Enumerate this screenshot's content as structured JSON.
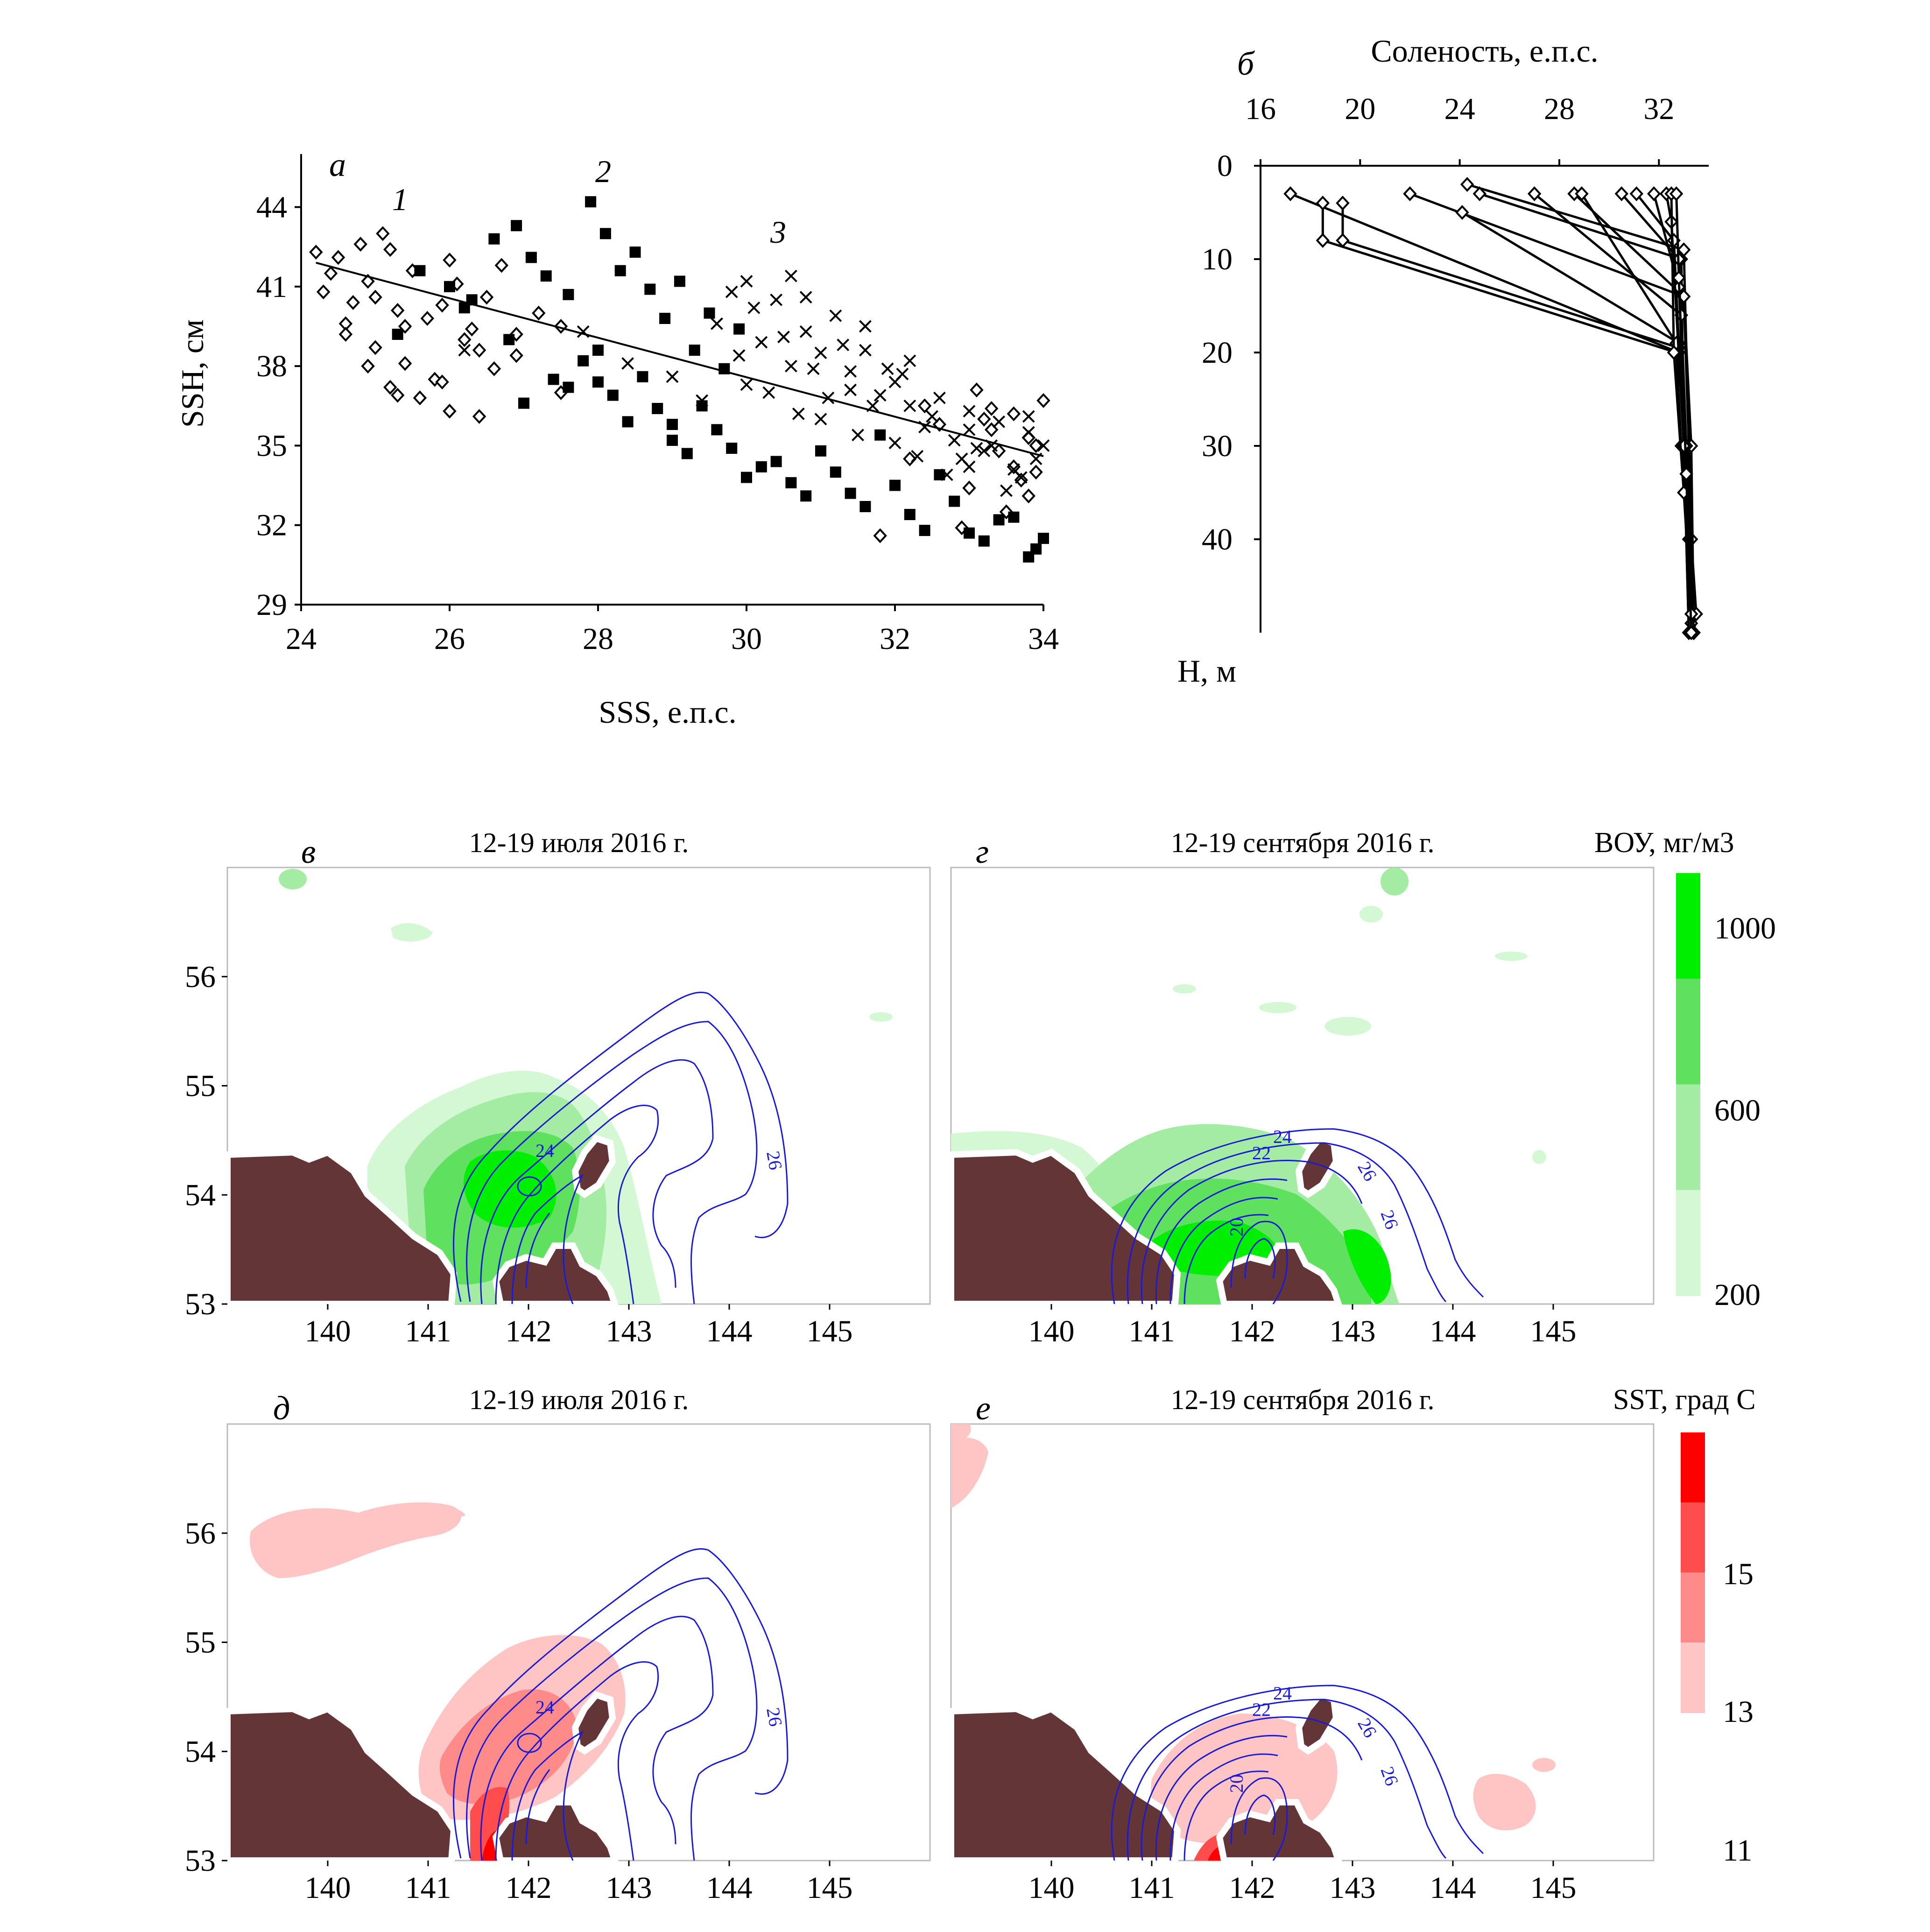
{
  "panel_letters": {
    "a": "а",
    "b": "б",
    "v": "в",
    "g": "г",
    "d": "д",
    "e": "е"
  },
  "series_numbers": [
    "1",
    "2",
    "3"
  ],
  "panel_titles": {
    "v": "12-19 июля 2016 г.",
    "g": "12-19 сентября 2016 г.",
    "d": "12-19 июля 2016 г.",
    "e": "12-19 сентября 2016 г."
  },
  "colorbars": {
    "chl": {
      "title": "ВОУ, мг/м3",
      "ticks": [
        "1000",
        "600",
        "200"
      ],
      "colors": [
        "#00ee00",
        "#5fe05f",
        "#a4eca4",
        "#d4f7d4"
      ]
    },
    "sst": {
      "title": "SST, град С",
      "ticks": [
        "15",
        "13",
        "11"
      ],
      "colors": [
        "#ff0000",
        "#ff4d4d",
        "#ff8a8a",
        "#ffc4c4"
      ]
    }
  },
  "contour_labels": {
    "v": [
      "24",
      "26"
    ],
    "g": [
      "24",
      "22",
      "26",
      "20",
      "26"
    ],
    "d": [
      "24",
      "26"
    ],
    "e": [
      "24",
      "22",
      "26",
      "20",
      "26"
    ]
  },
  "colors": {
    "land": "#633536",
    "contour": "#1a1ad6",
    "marker": "#000000"
  },
  "chart_data": [
    {
      "id": "a",
      "type": "scatter",
      "xlabel": "SSS, е.п.с.",
      "ylabel": "SSH, см",
      "xlim": [
        24,
        34
      ],
      "ylim": [
        29,
        46
      ],
      "x_ticks": [
        "24",
        "26",
        "28",
        "30",
        "32",
        "34"
      ],
      "y_ticks": [
        "29",
        "32",
        "35",
        "38",
        "41",
        "44"
      ],
      "series": [
        {
          "name": "1",
          "marker": "open-diamond",
          "x": [
            24.2,
            24.3,
            24.4,
            24.5,
            24.6,
            24.7,
            24.8,
            24.9,
            25.0,
            25.1,
            25.2,
            25.3,
            25.4,
            25.5,
            25.7,
            25.9,
            26.0,
            26.1,
            26.3,
            26.5,
            26.7,
            26.9,
            27.2,
            27.5,
            25.0,
            25.2,
            25.4,
            25.6,
            25.8,
            26.0,
            26.2,
            26.4,
            26.6,
            24.6,
            24.9,
            25.3,
            25.9,
            26.4,
            26.9,
            27.5,
            31.8,
            32.2,
            32.6,
            33.0,
            33.3,
            33.6,
            33.8,
            34.0,
            33.5,
            33.7,
            33.9,
            32.9,
            33.2,
            33.4,
            33.8,
            33.1,
            33.6,
            33.9,
            32.4,
            33.3
          ],
          "y": [
            42.3,
            40.8,
            41.5,
            42.1,
            39.6,
            40.4,
            42.6,
            41.2,
            40.6,
            43.0,
            42.4,
            40.1,
            39.5,
            41.6,
            39.8,
            40.3,
            42.0,
            41.1,
            39.4,
            40.6,
            41.8,
            39.2,
            40.0,
            39.5,
            38.7,
            37.2,
            38.1,
            36.8,
            37.5,
            36.3,
            39.0,
            38.6,
            37.9,
            39.2,
            38.0,
            36.9,
            37.4,
            36.1,
            38.4,
            37.0,
            31.6,
            34.5,
            35.8,
            33.4,
            36.4,
            34.2,
            35.3,
            36.7,
            32.5,
            33.7,
            35.0,
            31.9,
            36.0,
            34.8,
            33.1,
            37.1,
            36.2,
            34.0,
            36.5,
            35.6
          ]
        },
        {
          "name": "2",
          "marker": "filled-square",
          "x": [
            25.3,
            25.6,
            26.0,
            26.3,
            26.6,
            26.9,
            27.1,
            27.3,
            27.6,
            27.9,
            28.1,
            28.3,
            28.5,
            28.7,
            28.9,
            29.1,
            29.3,
            29.5,
            29.7,
            29.9,
            26.2,
            26.8,
            27.4,
            27.8,
            28.2,
            28.6,
            29.0,
            29.4,
            29.8,
            30.2,
            30.6,
            31.0,
            31.4,
            31.8,
            32.2,
            32.6,
            33.0,
            33.4,
            33.8,
            34.0,
            27.0,
            27.6,
            28.0,
            28.4,
            28.8,
            29.2,
            29.6,
            30.0,
            30.4,
            30.8,
            31.2,
            31.6,
            32.0,
            32.4,
            32.8,
            33.2,
            33.6,
            33.9,
            28.0,
            29.0
          ],
          "y": [
            39.2,
            41.6,
            41.0,
            40.5,
            42.8,
            43.3,
            42.1,
            41.4,
            40.7,
            44.2,
            43.0,
            41.6,
            42.3,
            40.9,
            39.8,
            41.2,
            38.6,
            40.0,
            37.9,
            39.4,
            40.2,
            39.0,
            37.5,
            38.2,
            36.9,
            37.6,
            35.8,
            36.5,
            34.9,
            34.2,
            33.6,
            34.8,
            33.2,
            35.4,
            32.4,
            33.9,
            31.7,
            32.2,
            30.8,
            31.5,
            36.6,
            37.2,
            38.6,
            35.9,
            36.4,
            34.7,
            35.6,
            33.8,
            34.4,
            33.1,
            34.0,
            32.7,
            33.5,
            31.8,
            32.9,
            31.4,
            32.3,
            31.1,
            37.4,
            35.2
          ]
        },
        {
          "name": "3",
          "marker": "cross",
          "x": [
            29.6,
            29.8,
            30.0,
            30.2,
            30.4,
            30.6,
            30.8,
            31.0,
            31.2,
            31.4,
            31.6,
            31.8,
            32.0,
            32.2,
            32.4,
            32.6,
            32.8,
            33.0,
            33.2,
            33.4,
            33.6,
            33.8,
            30.1,
            30.5,
            30.9,
            31.3,
            31.7,
            32.1,
            32.5,
            32.9,
            33.3,
            33.7,
            30.3,
            30.7,
            31.1,
            31.5,
            31.9,
            32.3,
            32.7,
            33.1,
            33.5,
            33.9,
            29.9,
            30.6,
            31.4,
            32.2,
            33.0,
            33.8,
            26.2,
            27.8,
            28.4,
            29.0,
            29.4,
            30.0,
            31.0,
            32.0,
            33.0,
            34.0,
            30.8,
            31.6
          ],
          "y": [
            39.6,
            40.8,
            41.2,
            38.9,
            40.5,
            41.4,
            39.3,
            38.5,
            39.9,
            37.8,
            38.6,
            36.9,
            37.4,
            38.2,
            35.7,
            36.8,
            35.2,
            36.3,
            34.8,
            35.9,
            34.1,
            35.5,
            40.2,
            39.1,
            37.9,
            38.8,
            36.5,
            37.7,
            36.1,
            34.5,
            35.0,
            33.8,
            37.0,
            36.2,
            36.8,
            35.4,
            37.9,
            34.6,
            33.9,
            34.9,
            33.3,
            34.5,
            38.4,
            38.0,
            37.1,
            36.5,
            35.6,
            36.1,
            38.6,
            39.3,
            38.1,
            37.6,
            36.7,
            37.3,
            36.0,
            35.1,
            34.2,
            35.0,
            40.6,
            39.5
          ]
        }
      ],
      "trendline": {
        "x": [
          24.2,
          34.0
        ],
        "y": [
          41.9,
          34.6
        ]
      }
    },
    {
      "id": "b",
      "type": "line",
      "title": "Соленость, е.п.с.",
      "ylabel": "Н, м",
      "x_axis_position": "top",
      "y_inverted": true,
      "xlim": [
        16,
        34
      ],
      "ylim": [
        0,
        50
      ],
      "x_ticks": [
        "16",
        "20",
        "24",
        "28",
        "32"
      ],
      "y_ticks": [
        "0",
        "10",
        "20",
        "30",
        "40"
      ],
      "profiles": [
        {
          "s": [
            17.2,
            32.8,
            33.1,
            33.3,
            33.5,
            33.4
          ],
          "h": [
            3,
            20,
            30,
            40,
            48,
            50
          ]
        },
        {
          "s": [
            18.5,
            18.5,
            32.7,
            32.9,
            33.2,
            33.4
          ],
          "h": [
            4,
            8,
            20,
            30,
            40,
            50
          ]
        },
        {
          "s": [
            19.3,
            19.3,
            32.8,
            33.0,
            33.3,
            33.4
          ],
          "h": [
            4,
            8,
            19.5,
            30,
            40,
            50
          ]
        },
        {
          "s": [
            22.0,
            33.0,
            33.2,
            33.4
          ],
          "h": [
            3,
            14,
            30,
            50
          ]
        },
        {
          "s": [
            24.1,
            32.8,
            33.1,
            33.3
          ],
          "h": [
            5,
            19,
            30,
            48
          ]
        },
        {
          "s": [
            24.3,
            33.0,
            33.2,
            33.4
          ],
          "h": [
            2,
            9,
            30,
            50
          ]
        },
        {
          "s": [
            24.8,
            32.9,
            33.0,
            33.3
          ],
          "h": [
            3,
            10,
            30,
            50
          ]
        },
        {
          "s": [
            27.0,
            32.9,
            33.1,
            33.4
          ],
          "h": [
            3,
            16,
            30,
            50
          ]
        },
        {
          "s": [
            28.6,
            33.0,
            33.3,
            33.4
          ],
          "h": [
            3,
            14,
            30,
            50
          ]
        },
        {
          "s": [
            28.9,
            32.7,
            33.1,
            33.3
          ],
          "h": [
            3,
            19,
            30,
            50
          ]
        },
        {
          "s": [
            30.5,
            32.8,
            33.0,
            33.2
          ],
          "h": [
            3,
            10,
            30,
            50
          ]
        },
        {
          "s": [
            31.1,
            32.6,
            33.0,
            33.3
          ],
          "h": [
            3,
            8,
            30,
            49
          ]
        },
        {
          "s": [
            31.8,
            32.8,
            33.1,
            33.4
          ],
          "h": [
            3,
            13,
            30,
            50
          ]
        },
        {
          "s": [
            32.3,
            32.5,
            33.0,
            33.2
          ],
          "h": [
            3,
            6,
            30,
            50
          ]
        },
        {
          "s": [
            32.5,
            32.6,
            33.0,
            33.3
          ],
          "h": [
            3,
            20,
            35,
            48
          ]
        },
        {
          "s": [
            32.7,
            32.8,
            33.1,
            33.3
          ],
          "h": [
            3,
            12,
            33,
            50
          ]
        }
      ]
    },
    {
      "id": "v",
      "type": "contour-map",
      "title": "12-19 июля 2016 г.",
      "field": "ВОУ",
      "xlim": [
        139,
        146
      ],
      "ylim": [
        53,
        57
      ],
      "x_ticks": [
        "140",
        "141",
        "142",
        "143",
        "144",
        "145"
      ],
      "y_ticks": [
        "53",
        "54",
        "55",
        "56"
      ]
    },
    {
      "id": "g",
      "type": "contour-map",
      "title": "12-19 сентября 2016 г.",
      "field": "ВОУ",
      "xlim": [
        139,
        146
      ],
      "ylim": [
        53,
        57
      ],
      "x_ticks": [
        "140",
        "141",
        "142",
        "143",
        "144",
        "145"
      ]
    },
    {
      "id": "d",
      "type": "contour-map",
      "title": "12-19 июля 2016 г.",
      "field": "SST",
      "xlim": [
        139,
        146
      ],
      "ylim": [
        53,
        57
      ],
      "x_ticks": [
        "140",
        "141",
        "142",
        "143",
        "144",
        "145"
      ],
      "y_ticks": [
        "53",
        "54",
        "55",
        "56"
      ]
    },
    {
      "id": "e",
      "type": "contour-map",
      "title": "12-19 сентября 2016 г.",
      "field": "SST",
      "xlim": [
        139,
        146
      ],
      "ylim": [
        53,
        57
      ],
      "x_ticks": [
        "140",
        "141",
        "142",
        "143",
        "144",
        "145"
      ]
    }
  ]
}
